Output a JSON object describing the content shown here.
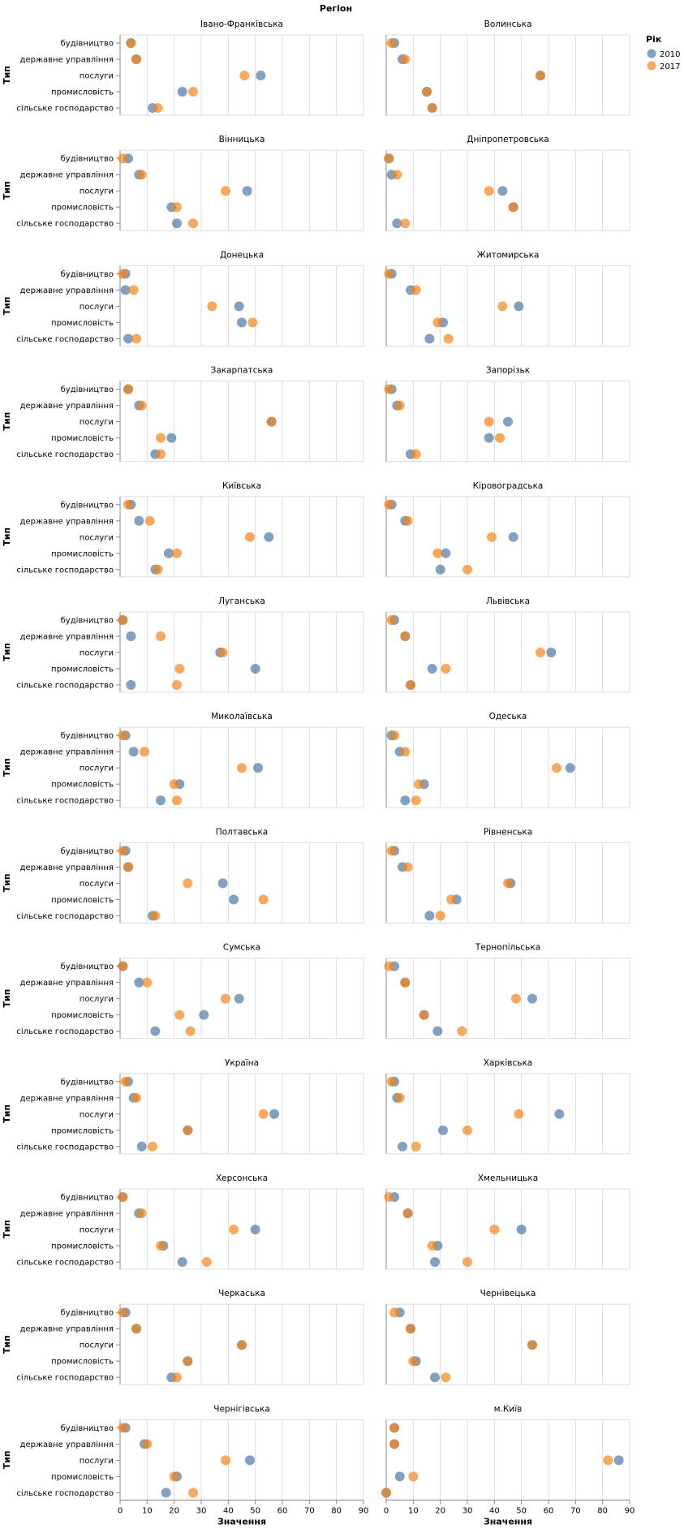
{
  "chart_data": {
    "type": "scatter",
    "title": "Регіон",
    "ylabel": "Тип",
    "xlabel": "Значення",
    "legend_title": "Рік",
    "legend_position": "top-right",
    "xlim": [
      0,
      90
    ],
    "x_ticks": [
      0,
      10,
      20,
      30,
      40,
      50,
      60,
      70,
      80,
      90
    ],
    "grid": true,
    "categories": [
      "будівництво",
      "державне управління",
      "послуги",
      "промисловість",
      "сільське господарство"
    ],
    "series": [
      {
        "name": "2010",
        "color": "#4c78a8"
      },
      {
        "name": "2017",
        "color": "#f58518"
      }
    ],
    "panels": [
      {
        "region": "Івано-Франківська",
        "v2010": [
          4,
          6,
          52,
          23,
          12
        ],
        "v2017": [
          4,
          6,
          46,
          27,
          14
        ]
      },
      {
        "region": "Волинська",
        "v2010": [
          3,
          6,
          57,
          15,
          17
        ],
        "v2017": [
          2,
          7,
          57,
          15,
          17
        ]
      },
      {
        "region": "Вінницька",
        "v2010": [
          3,
          7,
          47,
          19,
          21
        ],
        "v2017": [
          1,
          8,
          39,
          21,
          27
        ]
      },
      {
        "region": "Дніпропетровська",
        "v2010": [
          1,
          2,
          43,
          47,
          4
        ],
        "v2017": [
          1,
          4,
          38,
          47,
          7
        ]
      },
      {
        "region": "Донецька",
        "v2010": [
          2,
          2,
          44,
          45,
          3
        ],
        "v2017": [
          1,
          5,
          34,
          49,
          6
        ]
      },
      {
        "region": "Житомирська",
        "v2010": [
          2,
          9,
          49,
          21,
          16
        ],
        "v2017": [
          1,
          11,
          43,
          19,
          23
        ]
      },
      {
        "region": "Закарпатська",
        "v2010": [
          3,
          7,
          56,
          19,
          13
        ],
        "v2017": [
          3,
          8,
          56,
          15,
          15
        ]
      },
      {
        "region": "Запорізьк",
        "v2010": [
          2,
          4,
          45,
          38,
          9
        ],
        "v2017": [
          1,
          5,
          38,
          42,
          11
        ]
      },
      {
        "region": "Київська",
        "v2010": [
          4,
          7,
          55,
          18,
          13
        ],
        "v2017": [
          3,
          11,
          48,
          21,
          14
        ]
      },
      {
        "region": "Кіровоградська",
        "v2010": [
          2,
          7,
          47,
          22,
          20
        ],
        "v2017": [
          1,
          8,
          39,
          19,
          30
        ]
      },
      {
        "region": "Луганська",
        "v2010": [
          1,
          4,
          37,
          50,
          4
        ],
        "v2017": [
          1,
          15,
          38,
          22,
          21
        ]
      },
      {
        "region": "Львівська",
        "v2010": [
          3,
          7,
          61,
          17,
          9
        ],
        "v2017": [
          2,
          7,
          57,
          22,
          9
        ]
      },
      {
        "region": "Миколаївська",
        "v2010": [
          2,
          5,
          51,
          22,
          15
        ],
        "v2017": [
          1,
          9,
          45,
          20,
          21
        ]
      },
      {
        "region": "Одеська",
        "v2010": [
          2,
          5,
          68,
          14,
          7
        ],
        "v2017": [
          3,
          7,
          63,
          12,
          11
        ]
      },
      {
        "region": "Полтавська",
        "v2010": [
          2,
          3,
          38,
          42,
          12
        ],
        "v2017": [
          1,
          3,
          25,
          53,
          13
        ]
      },
      {
        "region": "Рівненська",
        "v2010": [
          3,
          6,
          46,
          26,
          16
        ],
        "v2017": [
          2,
          8,
          45,
          24,
          20
        ]
      },
      {
        "region": "Сумська",
        "v2010": [
          1,
          7,
          44,
          31,
          13
        ],
        "v2017": [
          1,
          10,
          39,
          22,
          26
        ]
      },
      {
        "region": "Тернопільська",
        "v2010": [
          3,
          7,
          54,
          14,
          19
        ],
        "v2017": [
          1,
          7,
          48,
          14,
          28
        ]
      },
      {
        "region": "Україна",
        "v2010": [
          3,
          5,
          57,
          25,
          8
        ],
        "v2017": [
          2,
          6,
          53,
          25,
          12
        ]
      },
      {
        "region": "Харківська",
        "v2010": [
          3,
          4,
          64,
          21,
          6
        ],
        "v2017": [
          2,
          5,
          49,
          30,
          11
        ]
      },
      {
        "region": "Херсонська",
        "v2010": [
          1,
          7,
          50,
          16,
          23
        ],
        "v2017": [
          1,
          8,
          42,
          15,
          32
        ]
      },
      {
        "region": "Хмельницька",
        "v2010": [
          3,
          8,
          50,
          19,
          18
        ],
        "v2017": [
          1,
          8,
          40,
          17,
          30
        ]
      },
      {
        "region": "Черкаська",
        "v2010": [
          2,
          6,
          45,
          25,
          19
        ],
        "v2017": [
          1,
          6,
          45,
          25,
          21
        ]
      },
      {
        "region": "Чернівецька",
        "v2010": [
          5,
          9,
          54,
          11,
          18
        ],
        "v2017": [
          3,
          9,
          54,
          10,
          22
        ]
      },
      {
        "region": "Чернігівська",
        "v2010": [
          2,
          9,
          48,
          21,
          17
        ],
        "v2017": [
          1,
          10,
          39,
          20,
          27
        ]
      },
      {
        "region": "м.Київ",
        "v2010": [
          3,
          3,
          86,
          5,
          0
        ],
        "v2017": [
          3,
          3,
          82,
          10,
          0
        ]
      }
    ]
  }
}
